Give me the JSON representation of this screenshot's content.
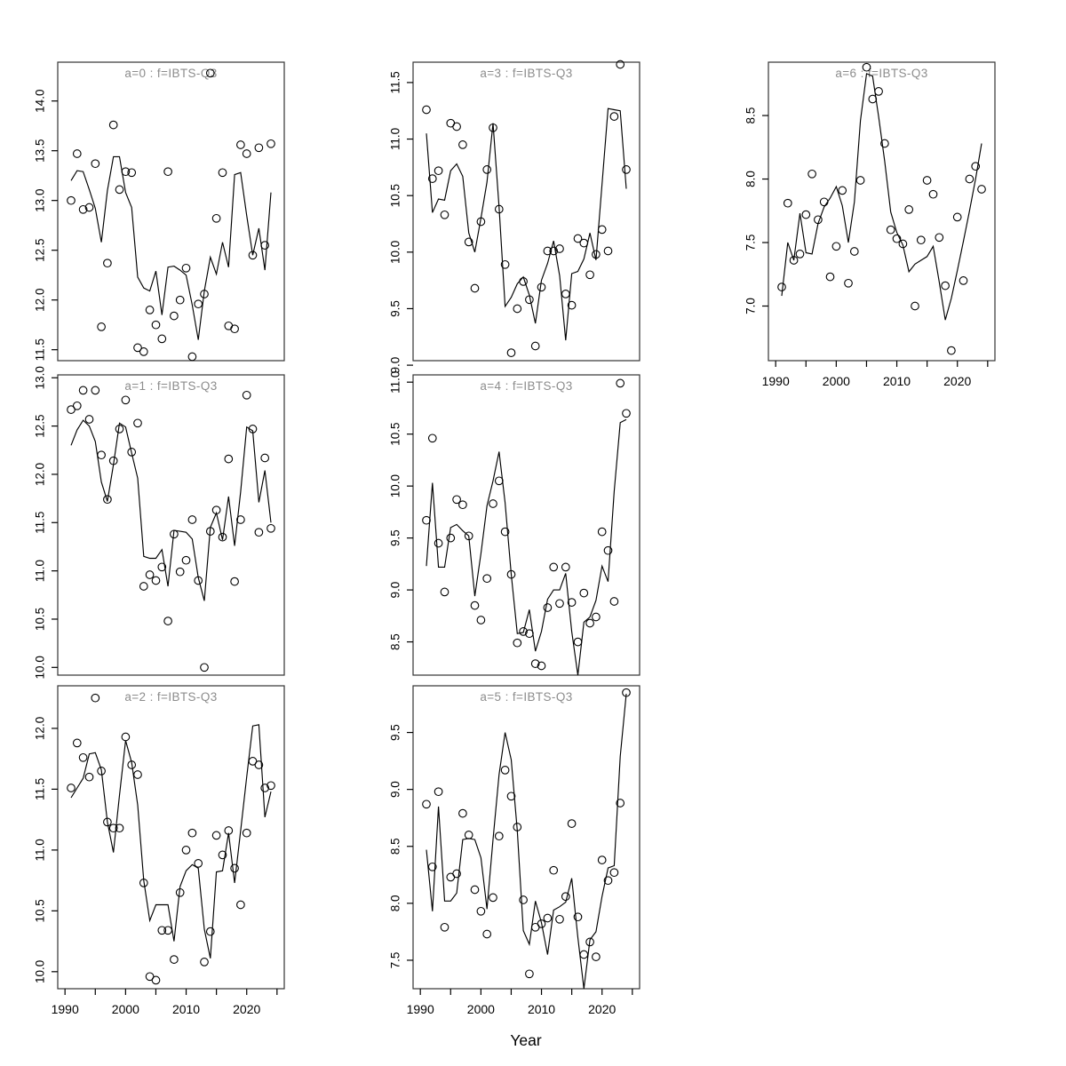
{
  "figure": {
    "xlabel": "Year",
    "background": "#ffffff",
    "colors": {
      "line": "#000000",
      "axis": "#000000",
      "box": "#333333",
      "title": "#8c8c8c"
    }
  },
  "chart_data": {
    "type": "line",
    "subtype": "multi-panel scatter with fitted line (R base graphics)",
    "x_label": "Year",
    "years": [
      1991,
      1992,
      1993,
      1994,
      1995,
      1996,
      1997,
      1998,
      1999,
      2000,
      2001,
      2002,
      2003,
      2004,
      2005,
      2006,
      2007,
      2008,
      2009,
      2010,
      2011,
      2012,
      2013,
      2014,
      2015,
      2016,
      2017,
      2018,
      2019,
      2020,
      2021,
      2022,
      2023,
      2024
    ],
    "x_axis": {
      "range": [
        1988.8,
        2026.2
      ],
      "ticks": [
        1990,
        1995,
        2000,
        2005,
        2010,
        2015,
        2020,
        2025
      ],
      "labeled_ticks": [
        1990,
        2000,
        2010,
        2020
      ]
    },
    "legend": {
      "observed": "open circles",
      "fitted": "solid line"
    },
    "panels": [
      {
        "id": "a0",
        "title": "a=0  :  f=IBTS-Q3",
        "ylim": [
          11.39,
          14.39
        ],
        "yticks": [
          11.5,
          12.0,
          12.5,
          13.0,
          13.5,
          14.0
        ],
        "observed": [
          13.0,
          13.47,
          12.91,
          12.93,
          13.37,
          11.73,
          12.37,
          13.76,
          13.11,
          13.29,
          13.28,
          11.52,
          11.48,
          11.9,
          11.75,
          11.61,
          13.29,
          11.84,
          12.0,
          12.32,
          11.43,
          11.96,
          12.06,
          14.28,
          12.82,
          13.28,
          11.74,
          11.71,
          13.56,
          13.47,
          12.45,
          13.53,
          12.55,
          13.57
        ],
        "fitted": [
          13.2,
          13.3,
          13.29,
          13.11,
          12.92,
          12.58,
          13.1,
          13.44,
          13.44,
          13.08,
          12.93,
          12.23,
          12.12,
          12.09,
          12.29,
          11.85,
          12.33,
          12.34,
          12.3,
          12.25,
          11.95,
          11.6,
          12.09,
          12.43,
          12.26,
          12.58,
          12.33,
          13.26,
          13.28,
          12.85,
          12.45,
          12.72,
          12.3,
          13.08
        ]
      },
      {
        "id": "a1",
        "title": "a=1  :  f=IBTS-Q3",
        "ylim": [
          9.92,
          13.03
        ],
        "yticks": [
          10.0,
          10.5,
          11.0,
          11.5,
          12.0,
          12.5,
          13.0
        ],
        "observed": [
          12.67,
          12.71,
          12.87,
          12.57,
          12.87,
          12.2,
          11.74,
          12.14,
          12.47,
          12.77,
          12.23,
          12.53,
          10.84,
          10.96,
          10.9,
          11.04,
          10.48,
          11.38,
          10.99,
          11.11,
          11.53,
          10.9,
          10.0,
          11.41,
          11.63,
          11.35,
          12.16,
          10.89,
          11.53,
          12.82,
          12.47,
          11.4,
          12.17,
          11.44
        ],
        "fitted": [
          12.3,
          12.46,
          12.56,
          12.5,
          12.34,
          11.92,
          11.72,
          12.1,
          12.53,
          12.49,
          12.22,
          11.96,
          11.15,
          11.13,
          11.13,
          11.22,
          10.84,
          11.42,
          11.41,
          11.4,
          11.33,
          10.93,
          10.69,
          11.45,
          11.6,
          11.32,
          11.77,
          11.26,
          11.82,
          12.49,
          12.45,
          11.71,
          12.04,
          11.5
        ]
      },
      {
        "id": "a2",
        "title": "a=2  :  f=IBTS-Q3",
        "ylim": [
          9.86,
          12.35
        ],
        "yticks": [
          10.0,
          10.5,
          11.0,
          11.5,
          12.0
        ],
        "observed": [
          11.51,
          11.88,
          11.76,
          11.6,
          12.25,
          11.65,
          11.23,
          11.18,
          11.18,
          11.93,
          11.7,
          11.62,
          10.73,
          9.96,
          9.93,
          10.34,
          10.34,
          10.1,
          10.65,
          11.0,
          11.14,
          10.89,
          10.08,
          10.33,
          11.12,
          10.96,
          11.16,
          10.85,
          10.55,
          11.14,
          11.73,
          11.7,
          11.51,
          11.53
        ],
        "fitted": [
          11.43,
          11.51,
          11.59,
          11.79,
          11.8,
          11.66,
          11.23,
          10.98,
          11.45,
          11.9,
          11.72,
          11.37,
          10.75,
          10.42,
          10.55,
          10.55,
          10.55,
          10.25,
          10.7,
          10.83,
          10.88,
          10.85,
          10.35,
          10.11,
          10.82,
          10.83,
          11.14,
          10.73,
          11.16,
          11.6,
          12.02,
          12.03,
          11.27,
          11.48
        ]
      },
      {
        "id": "a3",
        "title": "a=3  :  f=IBTS-Q3",
        "ylim": [
          9.04,
          11.68
        ],
        "yticks": [
          9.0,
          9.5,
          10.0,
          10.5,
          11.0,
          11.5
        ],
        "observed": [
          11.26,
          10.65,
          10.72,
          10.33,
          11.14,
          11.11,
          10.95,
          10.09,
          9.68,
          10.27,
          10.73,
          11.1,
          10.38,
          9.89,
          9.11,
          9.5,
          9.74,
          9.58,
          9.17,
          9.69,
          10.01,
          10.01,
          10.03,
          9.63,
          9.53,
          10.12,
          10.08,
          9.8,
          9.98,
          10.2,
          10.01,
          11.2,
          11.66,
          10.73
        ],
        "fitted": [
          11.05,
          10.35,
          10.47,
          10.46,
          10.72,
          10.78,
          10.67,
          10.17,
          10.0,
          10.3,
          10.62,
          11.14,
          10.4,
          9.52,
          9.6,
          9.72,
          9.78,
          9.62,
          9.37,
          9.75,
          9.9,
          10.1,
          9.79,
          9.22,
          9.81,
          9.83,
          9.94,
          10.17,
          9.93,
          10.6,
          11.27,
          11.26,
          11.25,
          10.56
        ]
      },
      {
        "id": "a4",
        "title": "a=4  :  f=IBTS-Q3",
        "ylim": [
          8.18,
          11.07
        ],
        "yticks": [
          8.5,
          9.0,
          9.5,
          10.0,
          10.5,
          11.0
        ],
        "observed": [
          9.67,
          10.46,
          9.45,
          8.98,
          9.5,
          9.87,
          9.82,
          9.52,
          8.85,
          8.71,
          9.11,
          9.83,
          10.05,
          9.56,
          9.15,
          8.49,
          8.6,
          8.58,
          8.29,
          8.27,
          8.83,
          9.22,
          8.87,
          9.22,
          8.88,
          8.5,
          8.97,
          8.68,
          8.74,
          9.56,
          9.38,
          8.89,
          10.99,
          10.7
        ],
        "fitted": [
          9.23,
          10.03,
          9.22,
          9.22,
          9.6,
          9.63,
          9.57,
          9.52,
          8.94,
          9.35,
          9.81,
          10.05,
          10.33,
          9.84,
          9.15,
          8.58,
          8.59,
          8.81,
          8.41,
          8.6,
          8.91,
          9.0,
          9.0,
          9.16,
          8.6,
          8.18,
          8.69,
          8.74,
          8.9,
          9.23,
          9.08,
          9.95,
          10.61,
          10.64
        ]
      },
      {
        "id": "a5",
        "title": "a=5  :  f=IBTS-Q3",
        "ylim": [
          7.25,
          9.91
        ],
        "yticks": [
          7.5,
          8.0,
          8.5,
          9.0,
          9.5
        ],
        "observed": [
          8.87,
          8.32,
          8.98,
          7.79,
          8.23,
          8.26,
          8.79,
          8.6,
          8.12,
          7.93,
          7.73,
          8.05,
          8.59,
          9.17,
          8.94,
          8.67,
          8.03,
          7.38,
          7.79,
          7.82,
          7.87,
          8.29,
          7.86,
          8.06,
          8.7,
          7.88,
          7.55,
          7.66,
          7.53,
          8.38,
          8.2,
          8.27,
          8.88,
          9.85
        ],
        "fitted": [
          8.47,
          7.93,
          8.85,
          8.02,
          8.02,
          8.09,
          8.56,
          8.57,
          8.56,
          8.4,
          7.95,
          8.56,
          9.13,
          9.5,
          9.26,
          8.64,
          7.76,
          7.64,
          8.02,
          7.83,
          7.55,
          7.94,
          7.97,
          8.01,
          8.22,
          7.7,
          7.25,
          7.68,
          7.75,
          8.06,
          8.31,
          8.33,
          9.29,
          9.84
        ],
        "x_axis_shown": true
      },
      {
        "id": "a6",
        "title": "a=6  :  f=IBTS-Q3",
        "ylim": [
          6.57,
          8.92
        ],
        "yticks": [
          7.0,
          7.5,
          8.0,
          8.5
        ],
        "observed": [
          7.15,
          7.81,
          7.36,
          7.41,
          7.72,
          8.04,
          7.68,
          7.82,
          7.23,
          7.47,
          7.91,
          7.18,
          7.43,
          7.99,
          8.88,
          8.63,
          8.69,
          8.28,
          7.6,
          7.53,
          7.49,
          7.76,
          7.0,
          7.52,
          7.99,
          7.88,
          7.54,
          7.16,
          6.65,
          7.7,
          7.2,
          8.0,
          8.1,
          7.92
        ],
        "fitted": [
          7.08,
          7.5,
          7.36,
          7.73,
          7.42,
          7.41,
          7.65,
          7.78,
          7.85,
          7.94,
          7.79,
          7.5,
          7.82,
          8.46,
          8.83,
          8.81,
          8.49,
          8.14,
          7.74,
          7.58,
          7.48,
          7.27,
          7.33,
          7.36,
          7.39,
          7.47,
          7.19,
          6.89,
          7.06,
          7.28,
          7.51,
          7.75,
          8.0,
          8.28
        ]
      }
    ]
  }
}
